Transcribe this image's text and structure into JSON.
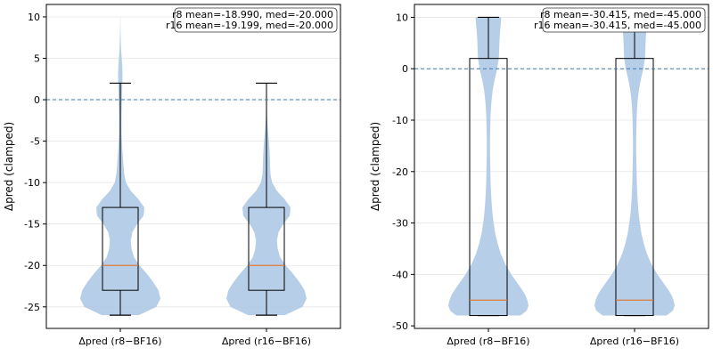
{
  "chart_data": [
    {
      "type": "violin+box",
      "ylabel": "Δpred (clamped)",
      "categories": [
        "Δpred (r8−BF16)",
        "Δpred (r16−BF16)"
      ],
      "ylim": [
        -27.6,
        11.5
      ],
      "yticks": [
        -25,
        -20,
        -15,
        -10,
        -5,
        0,
        5,
        10
      ],
      "grid": true,
      "reference_line": 0,
      "annotation": [
        "r8 mean=-18.990, med=-20.000",
        "r16 mean=-19.199, med=-20.000"
      ],
      "annotation_position": "top-right",
      "series": [
        {
          "box": {
            "whisker_low": -26,
            "q1": -23,
            "median": -20,
            "q3": -13,
            "whisker_high": 2
          },
          "density": [
            [
              -26,
              0.46
            ],
            [
              -25,
              0.9
            ],
            [
              -24,
              1.0
            ],
            [
              -23,
              0.95
            ],
            [
              -22,
              0.82
            ],
            [
              -21,
              0.66
            ],
            [
              -20,
              0.48
            ],
            [
              -19,
              0.34
            ],
            [
              -18,
              0.28
            ],
            [
              -17,
              0.26
            ],
            [
              -16,
              0.3
            ],
            [
              -15,
              0.42
            ],
            [
              -14,
              0.58
            ],
            [
              -13,
              0.6
            ],
            [
              -12,
              0.45
            ],
            [
              -11,
              0.26
            ],
            [
              -10,
              0.14
            ],
            [
              -9,
              0.1
            ],
            [
              -8,
              0.08
            ],
            [
              -7,
              0.065
            ],
            [
              -6,
              0.05
            ],
            [
              -5,
              0.04
            ],
            [
              -4,
              0.03
            ],
            [
              -3,
              0.03
            ],
            [
              -2,
              0.03
            ],
            [
              -1,
              0.035
            ],
            [
              0,
              0.04
            ],
            [
              1,
              0.045
            ],
            [
              2,
              0.05
            ],
            [
              3,
              0.055
            ],
            [
              4,
              0.05
            ],
            [
              5,
              0.035
            ],
            [
              6,
              0.02
            ],
            [
              7,
              0.012
            ],
            [
              8,
              0.007
            ],
            [
              9,
              0.004
            ],
            [
              10,
              0.002
            ]
          ]
        },
        {
          "box": {
            "whisker_low": -26,
            "q1": -23,
            "median": -20,
            "q3": -13,
            "whisker_high": 2
          },
          "density": [
            [
              -26,
              0.46
            ],
            [
              -25,
              0.9
            ],
            [
              -24,
              1.0
            ],
            [
              -23,
              0.95
            ],
            [
              -22,
              0.82
            ],
            [
              -21,
              0.66
            ],
            [
              -20,
              0.48
            ],
            [
              -19,
              0.34
            ],
            [
              -18,
              0.28
            ],
            [
              -17,
              0.26
            ],
            [
              -16,
              0.3
            ],
            [
              -15,
              0.42
            ],
            [
              -14,
              0.58
            ],
            [
              -13,
              0.6
            ],
            [
              -12,
              0.45
            ],
            [
              -11,
              0.26
            ],
            [
              -10,
              0.14
            ],
            [
              -9,
              0.1
            ],
            [
              -8,
              0.09
            ],
            [
              -7,
              0.085
            ],
            [
              -6,
              0.075
            ],
            [
              -5,
              0.06
            ],
            [
              -4,
              0.04
            ],
            [
              -3,
              0.025
            ],
            [
              -2,
              0.015
            ],
            [
              -1,
              0.01
            ],
            [
              0,
              0.008
            ],
            [
              1,
              0.005
            ],
            [
              2,
              0.002
            ]
          ]
        }
      ]
    },
    {
      "type": "violin+box",
      "ylabel": "Δpred (clamped)",
      "categories": [
        "Δpred (r8−BF16)",
        "Δpred (r16−BF16)"
      ],
      "ylim": [
        -50.5,
        12.5
      ],
      "yticks": [
        -50,
        -40,
        -30,
        -20,
        -10,
        0,
        10
      ],
      "grid": true,
      "reference_line": 0,
      "annotation": [
        "r8 mean=-30.415, med=-45.000",
        "r16 mean=-30.415, med=-45.000"
      ],
      "annotation_position": "top-right",
      "series": [
        {
          "box": {
            "whisker_low": -48,
            "q1": -48,
            "median": -45,
            "q3": 2,
            "whisker_high": 10
          },
          "density": [
            [
              -48,
              0.8
            ],
            [
              -47,
              0.96
            ],
            [
              -46,
              1.0
            ],
            [
              -45,
              0.97
            ],
            [
              -44,
              0.92
            ],
            [
              -43,
              0.84
            ],
            [
              -42,
              0.75
            ],
            [
              -41,
              0.66
            ],
            [
              -40,
              0.57
            ],
            [
              -38,
              0.42
            ],
            [
              -36,
              0.31
            ],
            [
              -34,
              0.23
            ],
            [
              -32,
              0.17
            ],
            [
              -30,
              0.13
            ],
            [
              -28,
              0.1
            ],
            [
              -26,
              0.08
            ],
            [
              -24,
              0.065
            ],
            [
              -22,
              0.055
            ],
            [
              -20,
              0.05
            ],
            [
              -18,
              0.045
            ],
            [
              -16,
              0.04
            ],
            [
              -14,
              0.04
            ],
            [
              -12,
              0.045
            ],
            [
              -10,
              0.05
            ],
            [
              -8,
              0.06
            ],
            [
              -6,
              0.08
            ],
            [
              -4,
              0.11
            ],
            [
              -2,
              0.16
            ],
            [
              0,
              0.22
            ],
            [
              2,
              0.26
            ],
            [
              4,
              0.27
            ],
            [
              6,
              0.28
            ],
            [
              8,
              0.3
            ],
            [
              10,
              0.32
            ]
          ]
        },
        {
          "box": {
            "whisker_low": -48,
            "q1": -48,
            "median": -45,
            "q3": 2,
            "whisker_high": 10
          },
          "density": [
            [
              -48,
              0.8
            ],
            [
              -47,
              0.96
            ],
            [
              -46,
              1.0
            ],
            [
              -45,
              0.97
            ],
            [
              -44,
              0.92
            ],
            [
              -43,
              0.84
            ],
            [
              -42,
              0.75
            ],
            [
              -41,
              0.66
            ],
            [
              -40,
              0.57
            ],
            [
              -38,
              0.42
            ],
            [
              -36,
              0.31
            ],
            [
              -34,
              0.23
            ],
            [
              -32,
              0.17
            ],
            [
              -30,
              0.13
            ],
            [
              -28,
              0.1
            ],
            [
              -26,
              0.08
            ],
            [
              -24,
              0.065
            ],
            [
              -22,
              0.055
            ],
            [
              -20,
              0.05
            ],
            [
              -18,
              0.045
            ],
            [
              -16,
              0.04
            ],
            [
              -14,
              0.04
            ],
            [
              -12,
              0.045
            ],
            [
              -10,
              0.05
            ],
            [
              -8,
              0.06
            ],
            [
              -6,
              0.08
            ],
            [
              -4,
              0.11
            ],
            [
              -2,
              0.16
            ],
            [
              0,
              0.22
            ],
            [
              2,
              0.26
            ],
            [
              4,
              0.27
            ],
            [
              6,
              0.28
            ],
            [
              8,
              0.3
            ],
            [
              10,
              0.32
            ]
          ]
        }
      ]
    }
  ],
  "colors": {
    "violin": "#a9c6e3",
    "median": "#e07b39",
    "reference_line": "#3f7ba6",
    "grid": "#e6e6e6",
    "box_edge": "#000000"
  }
}
